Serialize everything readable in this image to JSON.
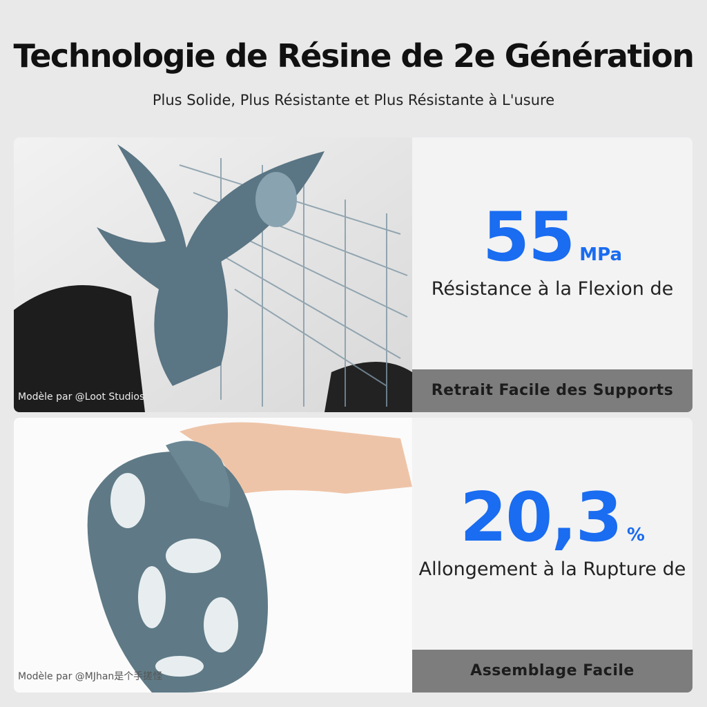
{
  "header": {
    "title": "Technologie de Résine de 2e Génération",
    "subtitle": "Plus Solide, Plus Résistante et Plus Résistante à L'usure"
  },
  "panels": [
    {
      "credit": "Modèle par @Loot Studios",
      "figure": "55",
      "unit": "MPa",
      "description": "Résistance à la Flexion de",
      "footer": "Retrait Facile des Supports"
    },
    {
      "credit": "Modèle par @MJhan是个手搓怪",
      "figure": "20,3",
      "unit": "%",
      "description": "Allongement à la Rupture de",
      "footer": "Assemblage Facile"
    }
  ]
}
